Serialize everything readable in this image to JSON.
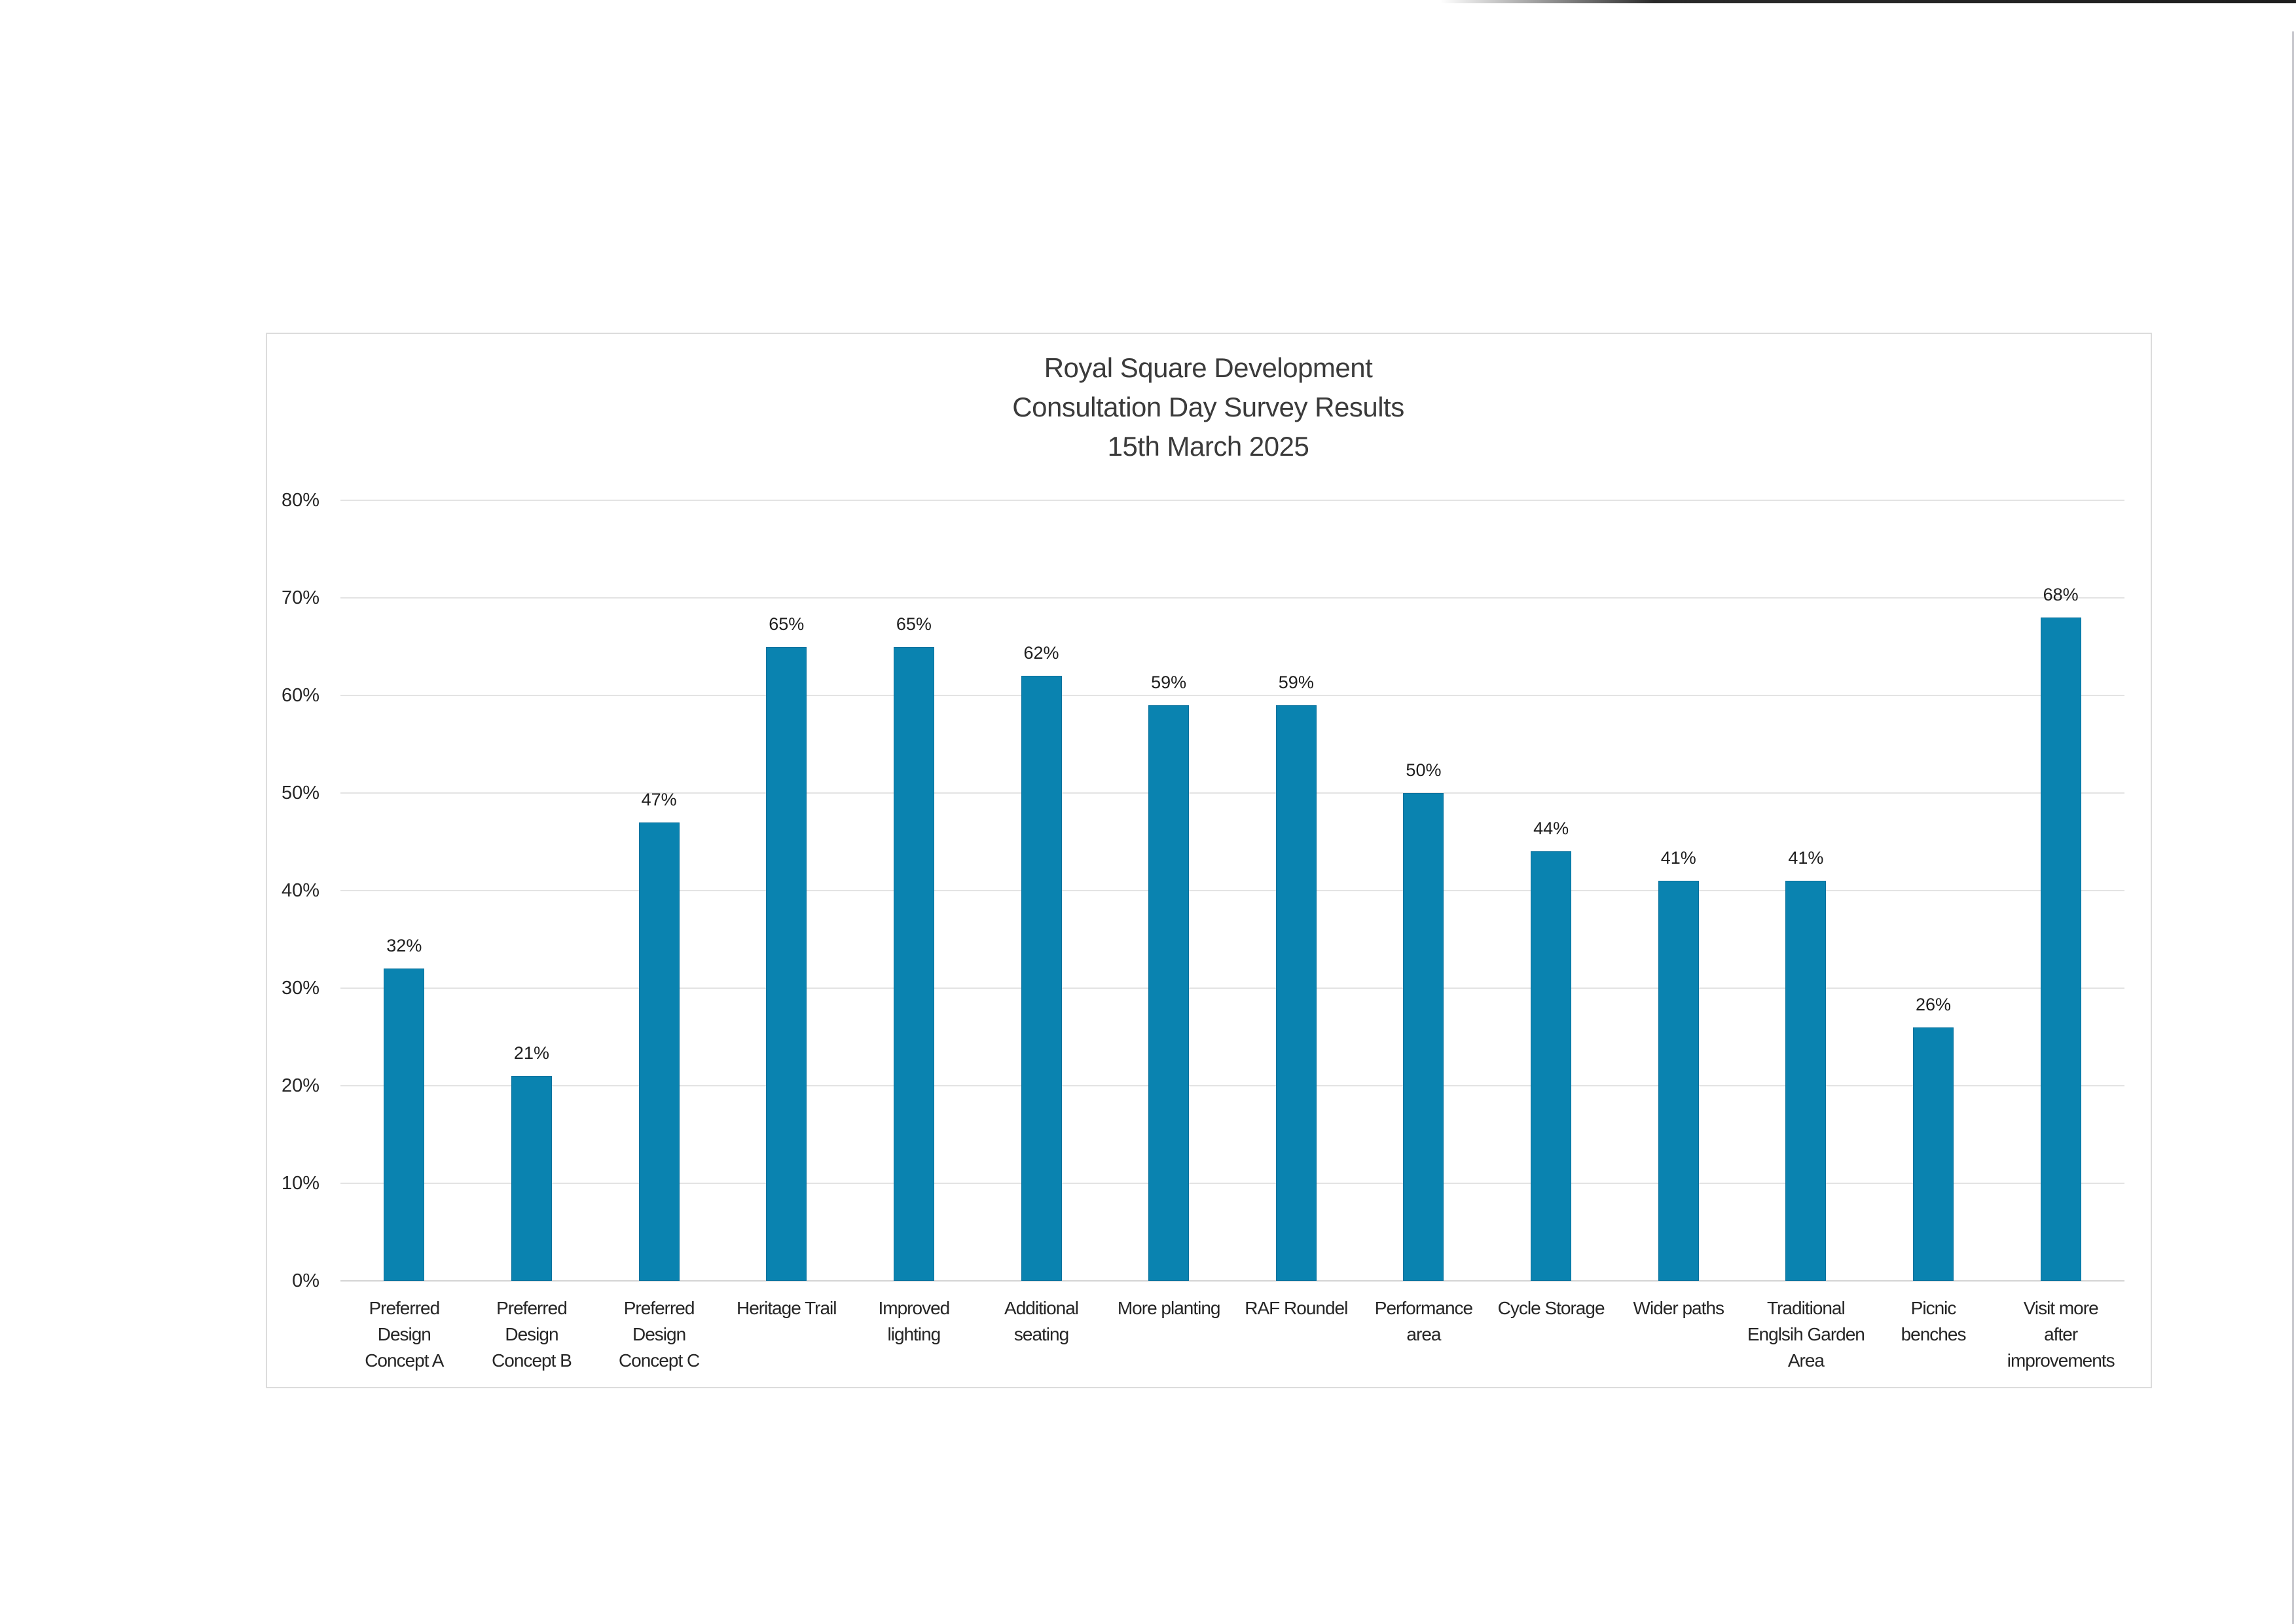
{
  "chart_data": {
    "type": "bar",
    "title": "Royal Square Development\nConsultation Day Survey Results\n15th March 2025",
    "title_lines": [
      "Royal Square Development",
      "Consultation Day Survey Results",
      "15th March 2025"
    ],
    "xlabel": "",
    "ylabel": "",
    "ylim": [
      0,
      80
    ],
    "y_ticks": [
      "0%",
      "10%",
      "20%",
      "30%",
      "40%",
      "50%",
      "60%",
      "70%",
      "80%"
    ],
    "grid": true,
    "legend": null,
    "bar_color": "#0a83b0",
    "categories": [
      "Preferred Design Concept A",
      "Preferred Design Concept B",
      "Preferred Design Concept C",
      "Heritage Trail",
      "Improved lighting",
      "Additional seating",
      "More planting",
      "RAF Roundel",
      "Performance area",
      "Cycle Storage",
      "Wider paths",
      "Traditional Englsih Garden Area",
      "Picnic benches",
      "Visit more after improvements"
    ],
    "category_label_lines": [
      [
        "Preferred",
        "Design",
        "Concept A"
      ],
      [
        "Preferred",
        "Design",
        "Concept B"
      ],
      [
        "Preferred",
        "Design",
        "Concept C"
      ],
      [
        "Heritage Trail"
      ],
      [
        "Improved",
        "lighting"
      ],
      [
        "Additional",
        "seating"
      ],
      [
        "More planting"
      ],
      [
        "RAF Roundel"
      ],
      [
        "Performance",
        "area"
      ],
      [
        "Cycle Storage"
      ],
      [
        "Wider paths"
      ],
      [
        "Traditional",
        "Englsih Garden",
        "Area"
      ],
      [
        "Picnic",
        "benches"
      ],
      [
        "Visit more",
        "after",
        "improvements"
      ]
    ],
    "values": [
      32,
      21,
      47,
      65,
      65,
      62,
      59,
      59,
      50,
      44,
      41,
      41,
      26,
      68
    ],
    "data_labels": [
      "32%",
      "21%",
      "47%",
      "65%",
      "65%",
      "62%",
      "59%",
      "59%",
      "50%",
      "44%",
      "41%",
      "41%",
      "26%",
      "68%"
    ],
    "unit": "%"
  }
}
